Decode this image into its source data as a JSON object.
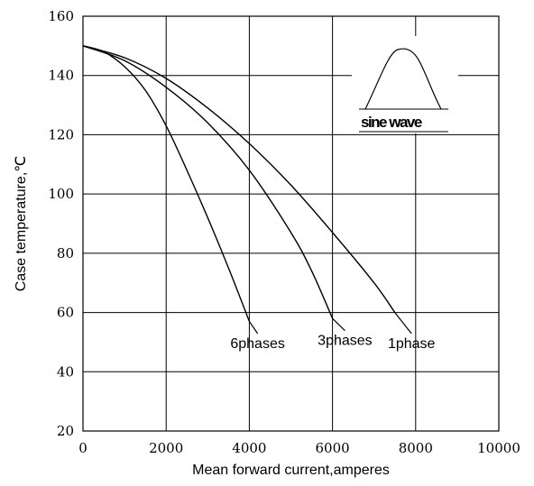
{
  "chart_data": {
    "type": "line",
    "title": "",
    "xlabel": "Mean forward current,amperes",
    "ylabel": "Case temperature,℃",
    "xlim": [
      0,
      10000
    ],
    "ylim": [
      20,
      160
    ],
    "x_ticks": [
      "0",
      "2000",
      "4000",
      "6000",
      "8000",
      "10000"
    ],
    "y_ticks": [
      "20",
      "40",
      "60",
      "80",
      "100",
      "120",
      "140",
      "160"
    ],
    "grid": true,
    "inset_label": "sine wave",
    "series": [
      {
        "name": "6phases",
        "points": [
          [
            0,
            150
          ],
          [
            500,
            148
          ],
          [
            1000,
            143
          ],
          [
            1500,
            135
          ],
          [
            2000,
            123
          ],
          [
            2500,
            108
          ],
          [
            3000,
            92
          ],
          [
            3500,
            75
          ],
          [
            4000,
            57
          ]
        ],
        "label_anchor": [
          4200,
          48
        ],
        "leader_from": [
          4000,
          57
        ]
      },
      {
        "name": "3phases",
        "points": [
          [
            0,
            150
          ],
          [
            1000,
            145
          ],
          [
            2000,
            136
          ],
          [
            3000,
            124
          ],
          [
            4000,
            108
          ],
          [
            5000,
            87
          ],
          [
            5500,
            74
          ],
          [
            6000,
            58
          ]
        ],
        "label_anchor": [
          6300,
          49
        ],
        "leader_from": [
          6000,
          58
        ]
      },
      {
        "name": "1phase",
        "points": [
          [
            0,
            150
          ],
          [
            1000,
            146
          ],
          [
            2000,
            139
          ],
          [
            3000,
            129
          ],
          [
            4000,
            117
          ],
          [
            5000,
            103
          ],
          [
            6000,
            87
          ],
          [
            7000,
            70
          ],
          [
            7500,
            60
          ]
        ],
        "label_anchor": [
          7900,
          48
        ],
        "leader_from": [
          7500,
          60
        ]
      }
    ]
  }
}
